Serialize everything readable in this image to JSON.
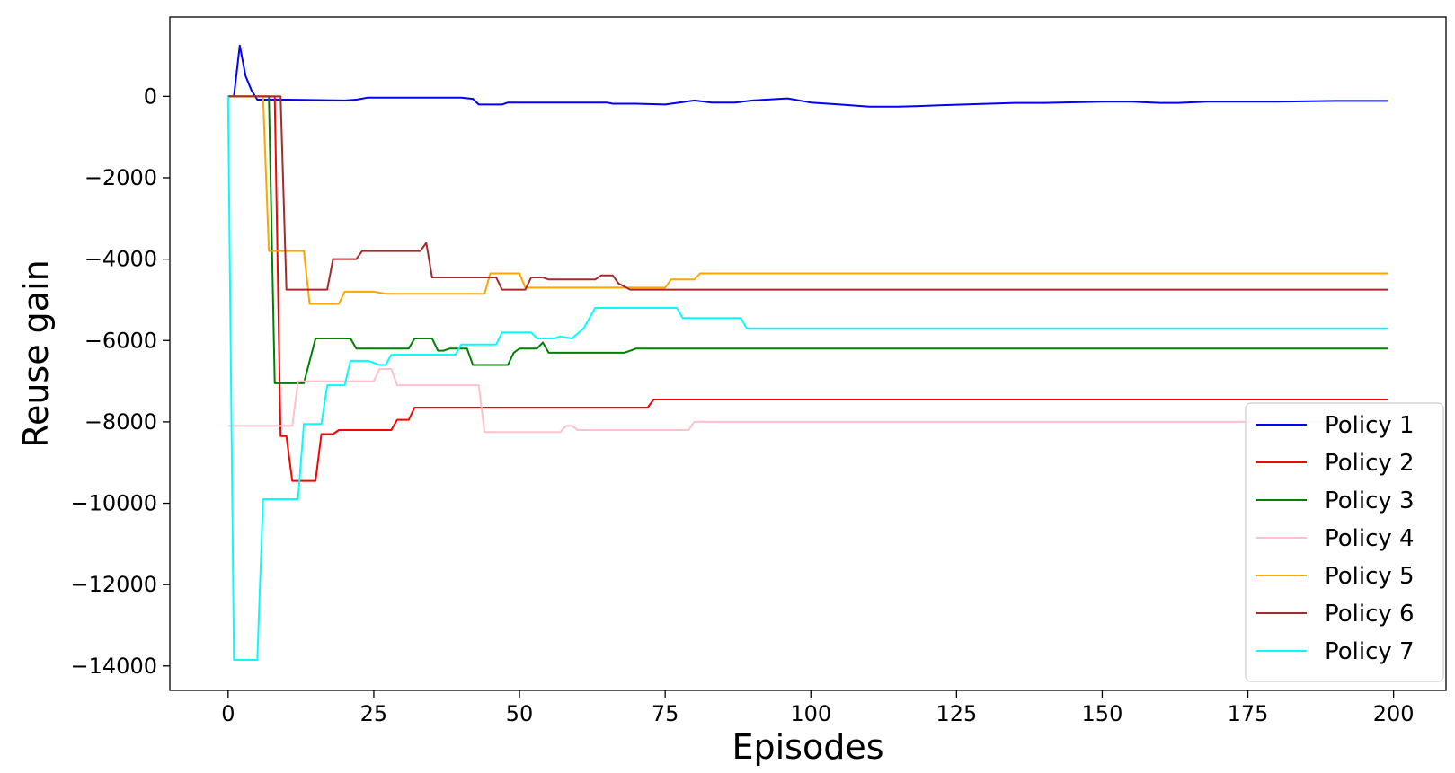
{
  "chart_data": {
    "type": "line",
    "title": "",
    "xlabel": "Episodes",
    "ylabel": "Reuse gain",
    "xlim": [
      -10,
      209
    ],
    "ylim": [
      -14600,
      1950
    ],
    "xticks": [
      0,
      25,
      50,
      75,
      100,
      125,
      150,
      175,
      200
    ],
    "xtick_labels": [
      "0",
      "25",
      "50",
      "75",
      "100",
      "125",
      "150",
      "175",
      "200"
    ],
    "yticks": [
      0,
      -2000,
      -4000,
      -6000,
      -8000,
      -10000,
      -12000,
      -14000
    ],
    "ytick_labels": [
      "0",
      "−2000",
      "−4000",
      "−6000",
      "−8000",
      "−10000",
      "−12000",
      "−14000"
    ],
    "grid": false,
    "legend_position": "bottom-right",
    "series": [
      {
        "name": "Policy 1",
        "color": "#0000ff",
        "points": [
          [
            0,
            0
          ],
          [
            1,
            0
          ],
          [
            2,
            1250
          ],
          [
            3,
            500
          ],
          [
            4,
            150
          ],
          [
            5,
            -80
          ],
          [
            10,
            -80
          ],
          [
            20,
            -100
          ],
          [
            22,
            -80
          ],
          [
            24,
            -30
          ],
          [
            30,
            -30
          ],
          [
            40,
            -30
          ],
          [
            42,
            -60
          ],
          [
            43,
            -200
          ],
          [
            47,
            -200
          ],
          [
            48,
            -150
          ],
          [
            60,
            -150
          ],
          [
            65,
            -150
          ],
          [
            66,
            -180
          ],
          [
            70,
            -180
          ],
          [
            75,
            -200
          ],
          [
            80,
            -100
          ],
          [
            83,
            -150
          ],
          [
            87,
            -150
          ],
          [
            90,
            -100
          ],
          [
            96,
            -50
          ],
          [
            100,
            -150
          ],
          [
            105,
            -200
          ],
          [
            110,
            -250
          ],
          [
            115,
            -250
          ],
          [
            118,
            -240
          ],
          [
            122,
            -220
          ],
          [
            128,
            -190
          ],
          [
            135,
            -160
          ],
          [
            140,
            -160
          ],
          [
            150,
            -130
          ],
          [
            155,
            -130
          ],
          [
            160,
            -160
          ],
          [
            163,
            -160
          ],
          [
            168,
            -130
          ],
          [
            180,
            -130
          ],
          [
            190,
            -110
          ],
          [
            199,
            -110
          ]
        ]
      },
      {
        "name": "Policy 2",
        "color": "#ff0000",
        "points": [
          [
            0,
            0
          ],
          [
            8,
            0
          ],
          [
            9,
            -8350
          ],
          [
            10,
            -8350
          ],
          [
            11,
            -9450
          ],
          [
            15,
            -9450
          ],
          [
            16,
            -8300
          ],
          [
            18,
            -8300
          ],
          [
            19,
            -8200
          ],
          [
            28,
            -8200
          ],
          [
            29,
            -7950
          ],
          [
            31,
            -7950
          ],
          [
            32,
            -7650
          ],
          [
            72,
            -7650
          ],
          [
            73,
            -7450
          ],
          [
            199,
            -7450
          ]
        ]
      },
      {
        "name": "Policy 3",
        "color": "#008000",
        "points": [
          [
            0,
            0
          ],
          [
            7,
            0
          ],
          [
            8,
            -7050
          ],
          [
            13,
            -7050
          ],
          [
            15,
            -5950
          ],
          [
            21,
            -5950
          ],
          [
            22,
            -6200
          ],
          [
            31,
            -6200
          ],
          [
            32,
            -5950
          ],
          [
            35,
            -5950
          ],
          [
            36,
            -6250
          ],
          [
            37,
            -6250
          ],
          [
            38,
            -6200
          ],
          [
            41,
            -6200
          ],
          [
            42,
            -6600
          ],
          [
            48,
            -6600
          ],
          [
            49,
            -6300
          ],
          [
            50,
            -6200
          ],
          [
            53,
            -6200
          ],
          [
            54,
            -6050
          ],
          [
            55,
            -6300
          ],
          [
            68,
            -6300
          ],
          [
            70,
            -6200
          ],
          [
            199,
            -6200
          ]
        ]
      },
      {
        "name": "Policy 4",
        "color": "#ffc0cb",
        "points": [
          [
            0,
            -8100
          ],
          [
            11,
            -8100
          ],
          [
            12,
            -7000
          ],
          [
            25,
            -7000
          ],
          [
            26,
            -6700
          ],
          [
            28,
            -6700
          ],
          [
            29,
            -7100
          ],
          [
            43,
            -7100
          ],
          [
            44,
            -8250
          ],
          [
            57,
            -8250
          ],
          [
            58,
            -8100
          ],
          [
            59,
            -8100
          ],
          [
            60,
            -8200
          ],
          [
            79,
            -8200
          ],
          [
            80,
            -8000
          ],
          [
            199,
            -8000
          ]
        ]
      },
      {
        "name": "Policy 5",
        "color": "#ffa500",
        "points": [
          [
            0,
            0
          ],
          [
            6,
            0
          ],
          [
            7,
            -3800
          ],
          [
            13,
            -3800
          ],
          [
            14,
            -5100
          ],
          [
            19,
            -5100
          ],
          [
            20,
            -4800
          ],
          [
            25,
            -4800
          ],
          [
            27,
            -4850
          ],
          [
            44,
            -4850
          ],
          [
            45,
            -4350
          ],
          [
            50,
            -4350
          ],
          [
            51,
            -4700
          ],
          [
            75,
            -4700
          ],
          [
            76,
            -4500
          ],
          [
            80,
            -4500
          ],
          [
            81,
            -4350
          ],
          [
            199,
            -4350
          ]
        ]
      },
      {
        "name": "Policy 6",
        "color": "#a52a2a",
        "points": [
          [
            0,
            0
          ],
          [
            9,
            0
          ],
          [
            10,
            -4750
          ],
          [
            17,
            -4750
          ],
          [
            18,
            -4000
          ],
          [
            22,
            -4000
          ],
          [
            23,
            -3800
          ],
          [
            33,
            -3800
          ],
          [
            34,
            -3600
          ],
          [
            35,
            -4450
          ],
          [
            46,
            -4450
          ],
          [
            47,
            -4750
          ],
          [
            51,
            -4750
          ],
          [
            52,
            -4450
          ],
          [
            54,
            -4450
          ],
          [
            55,
            -4500
          ],
          [
            63,
            -4500
          ],
          [
            64,
            -4400
          ],
          [
            66,
            -4400
          ],
          [
            67,
            -4600
          ],
          [
            69,
            -4750
          ],
          [
            199,
            -4750
          ]
        ]
      },
      {
        "name": "Policy 7",
        "color": "#00ffff",
        "points": [
          [
            0,
            0
          ],
          [
            1,
            -13850
          ],
          [
            5,
            -13850
          ],
          [
            6,
            -9900
          ],
          [
            12,
            -9900
          ],
          [
            13,
            -8050
          ],
          [
            16,
            -8050
          ],
          [
            17,
            -7100
          ],
          [
            20,
            -7100
          ],
          [
            21,
            -6500
          ],
          [
            24,
            -6500
          ],
          [
            26,
            -6600
          ],
          [
            27,
            -6600
          ],
          [
            28,
            -6350
          ],
          [
            39,
            -6350
          ],
          [
            40,
            -6100
          ],
          [
            46,
            -6100
          ],
          [
            47,
            -5800
          ],
          [
            52,
            -5800
          ],
          [
            53,
            -5950
          ],
          [
            56,
            -5950
          ],
          [
            57,
            -5900
          ],
          [
            59,
            -5950
          ],
          [
            61,
            -5700
          ],
          [
            63,
            -5200
          ],
          [
            77,
            -5200
          ],
          [
            78,
            -5450
          ],
          [
            88,
            -5450
          ],
          [
            89,
            -5700
          ],
          [
            199,
            -5700
          ]
        ]
      }
    ]
  }
}
